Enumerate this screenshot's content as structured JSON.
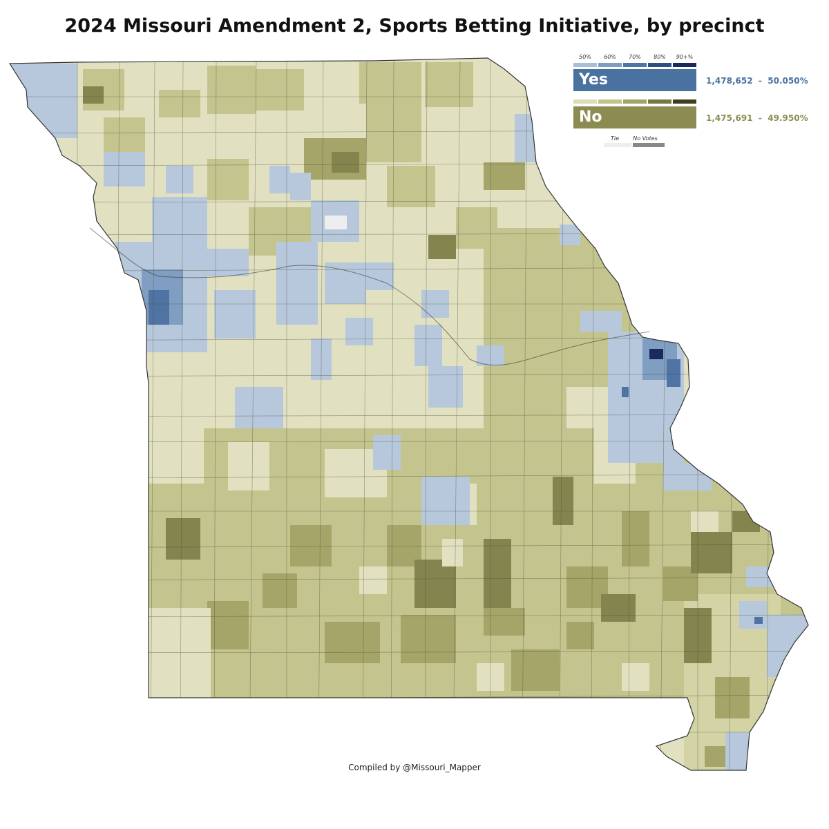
{
  "title": "2024 Missouri Amendment 2, Sports Betting Initiative, by precinct",
  "credit": "Compiled by @Missouri_Mapper",
  "legend": {
    "scale_labels": [
      "50%",
      "60%",
      "70%",
      "80%",
      "90+%"
    ],
    "yes": {
      "label": "Yes",
      "votes": "1,478,652",
      "percent": "50.050%",
      "color": "#4a72a0",
      "scale_colors": [
        "#a9bfd8",
        "#7d9dc2",
        "#4f75a5",
        "#2d4f86",
        "#1a2a5c"
      ]
    },
    "no": {
      "label": "No",
      "votes": "1,475,691",
      "percent": "49.950%",
      "color": "#8c8c52",
      "scale_colors": [
        "#dcdcb6",
        "#c2c289",
        "#a3a366",
        "#777744",
        "#3e3e1e"
      ]
    },
    "tie_label": "Tie",
    "no_votes_label": "No Votes",
    "tie_color": "#eeeeee",
    "no_votes_color": "#888888"
  },
  "fill_colors": {
    "no_light": "#e1e1c2",
    "no_mid": "#c4c48e",
    "no_dark": "#a5a56a",
    "no_darker": "#84844f",
    "yes_light": "#b7c8dc",
    "yes_mid": "#7f9ec2",
    "yes_dark": "#4f73a3"
  }
}
